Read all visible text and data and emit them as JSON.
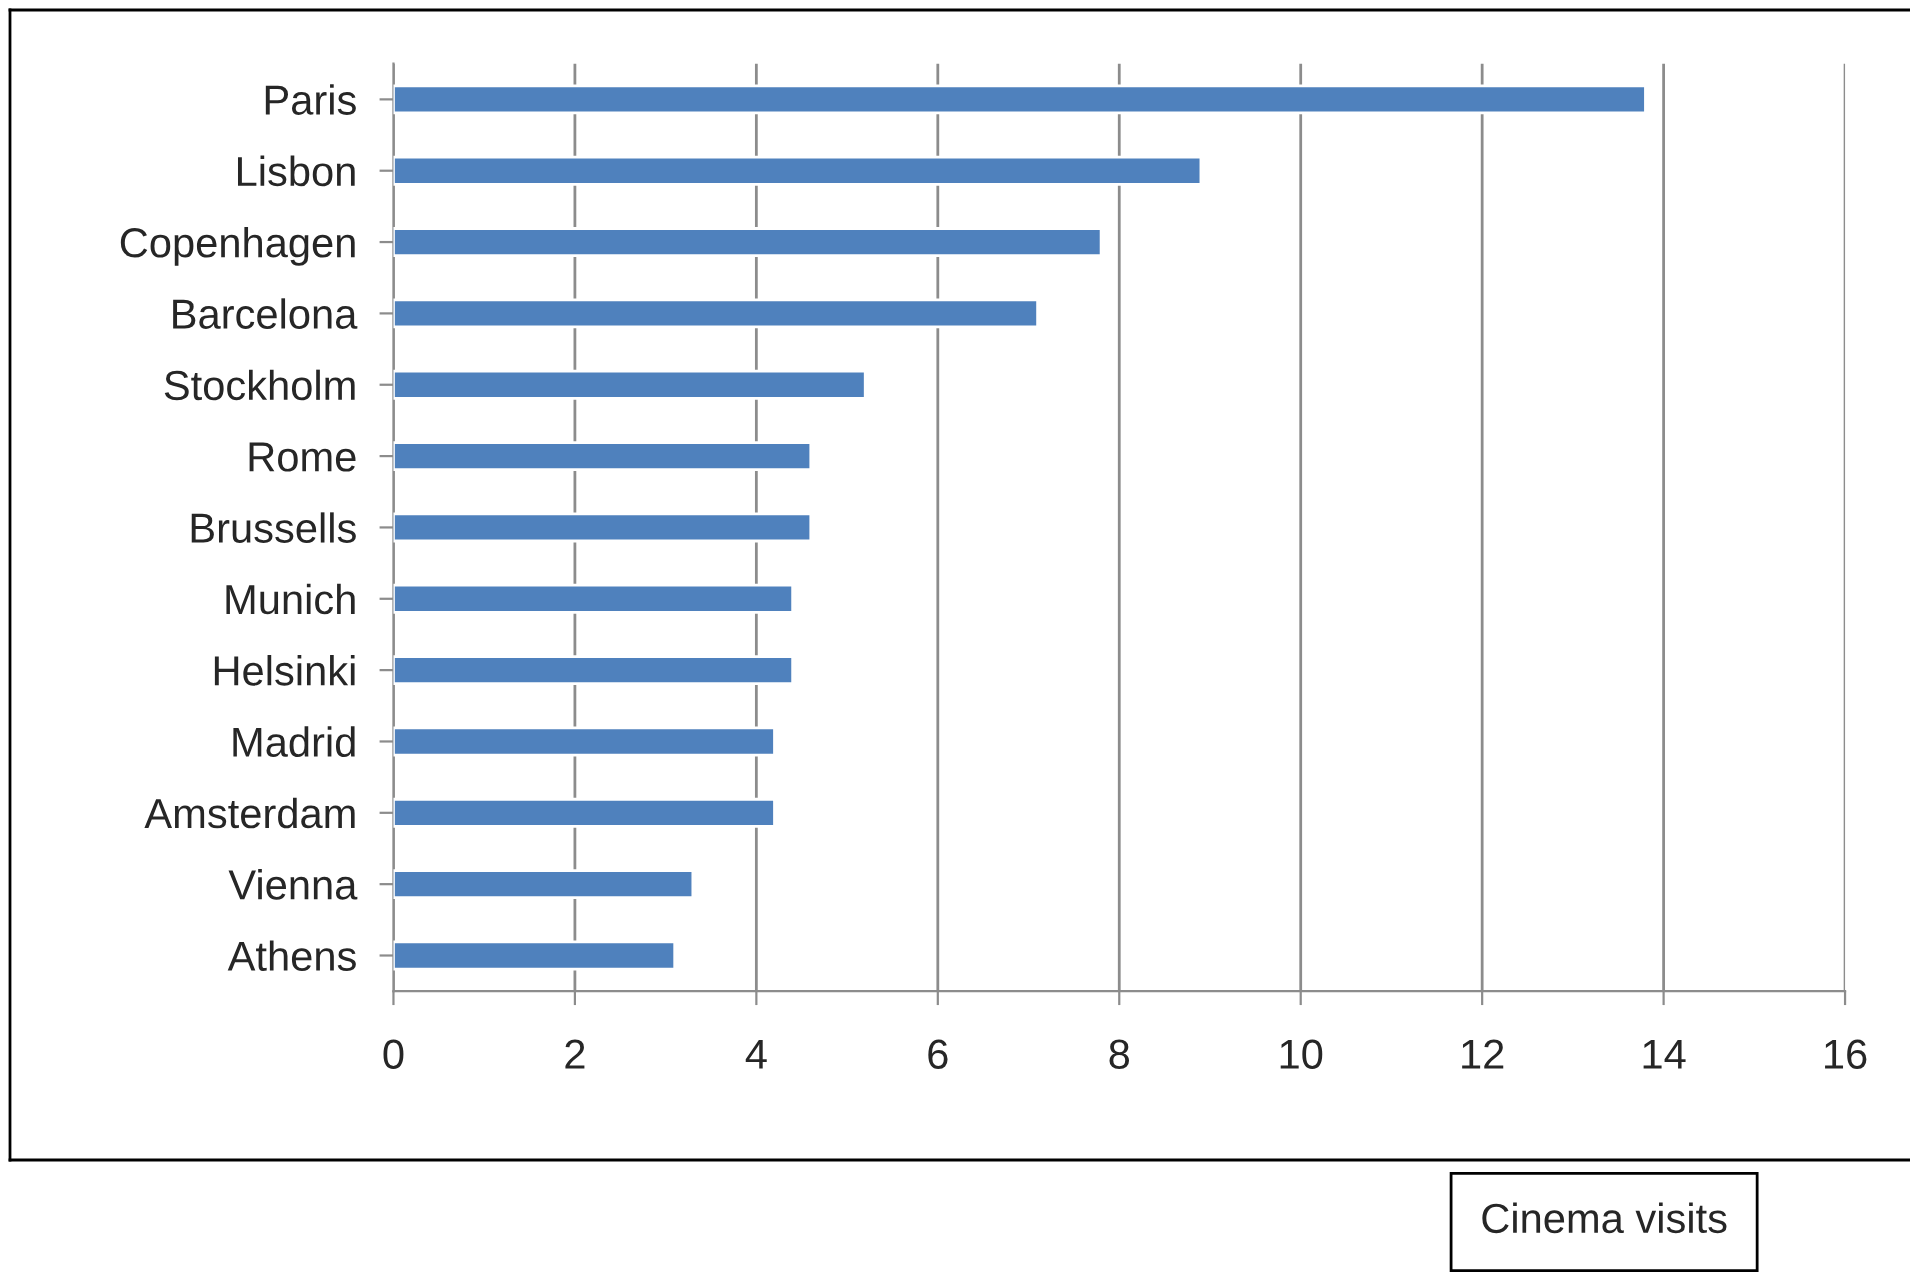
{
  "chart_data": {
    "type": "bar",
    "orientation": "horizontal",
    "categories": [
      "Paris",
      "Lisbon",
      "Copenhagen",
      "Barcelona",
      "Stockholm",
      "Rome",
      "Brussells",
      "Munich",
      "Helsinki",
      "Madrid",
      "Amsterdam",
      "Vienna",
      "Athens"
    ],
    "values": [
      13.8,
      8.9,
      7.8,
      7.1,
      5.2,
      4.6,
      4.6,
      4.4,
      4.4,
      4.2,
      4.2,
      3.3,
      3.1
    ],
    "color": "#4f81bd",
    "xlim": [
      0,
      16
    ],
    "xticks": [
      0,
      2,
      4,
      6,
      8,
      10,
      12,
      14,
      16
    ],
    "grid": "x",
    "legend": false,
    "annotations": [
      "Cinema visits"
    ]
  }
}
